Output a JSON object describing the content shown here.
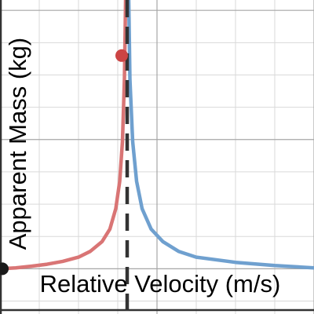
{
  "chart_data": {
    "type": "line",
    "xlabel": "Relative Velocity (m/s)",
    "ylabel": "Apparent Mass (kg)",
    "grid": true,
    "series": [
      {
        "color": "#d97575",
        "points": [
          [
            0.0,
            0.0
          ],
          [
            0.4,
            0.03
          ],
          [
            0.8,
            0.08
          ],
          [
            1.2,
            0.14
          ],
          [
            1.6,
            0.23
          ],
          [
            2.0,
            0.36
          ],
          [
            2.3,
            0.54
          ],
          [
            2.6,
            0.84
          ],
          [
            2.8,
            1.23
          ],
          [
            2.95,
            1.86
          ],
          [
            3.05,
            2.71
          ],
          [
            3.12,
            3.94
          ],
          [
            3.17,
            5.87
          ],
          [
            3.2,
            8.32
          ]
        ]
      },
      {
        "color": "#6fa0cf",
        "points": [
          [
            3.28,
            8.32
          ],
          [
            3.31,
            5.87
          ],
          [
            3.38,
            3.94
          ],
          [
            3.48,
            2.71
          ],
          [
            3.62,
            1.86
          ],
          [
            3.85,
            1.23
          ],
          [
            4.15,
            0.84
          ],
          [
            4.55,
            0.54
          ],
          [
            5.0,
            0.36
          ],
          [
            6.0,
            0.2
          ],
          [
            7.0,
            0.1
          ],
          [
            8.0,
            0.03
          ]
        ]
      }
    ],
    "asymptote": {
      "x": 3.24,
      "color": "#333333"
    },
    "highlighted_points": [
      {
        "x": 3.1,
        "y": 6.6,
        "color": "#cc4444"
      },
      {
        "x": 0.0,
        "y": 0.0,
        "color": "#1a1a1a"
      }
    ],
    "xlim": [
      0.0,
      8.0
    ],
    "ylim": [
      -1.4,
      8.32
    ]
  }
}
